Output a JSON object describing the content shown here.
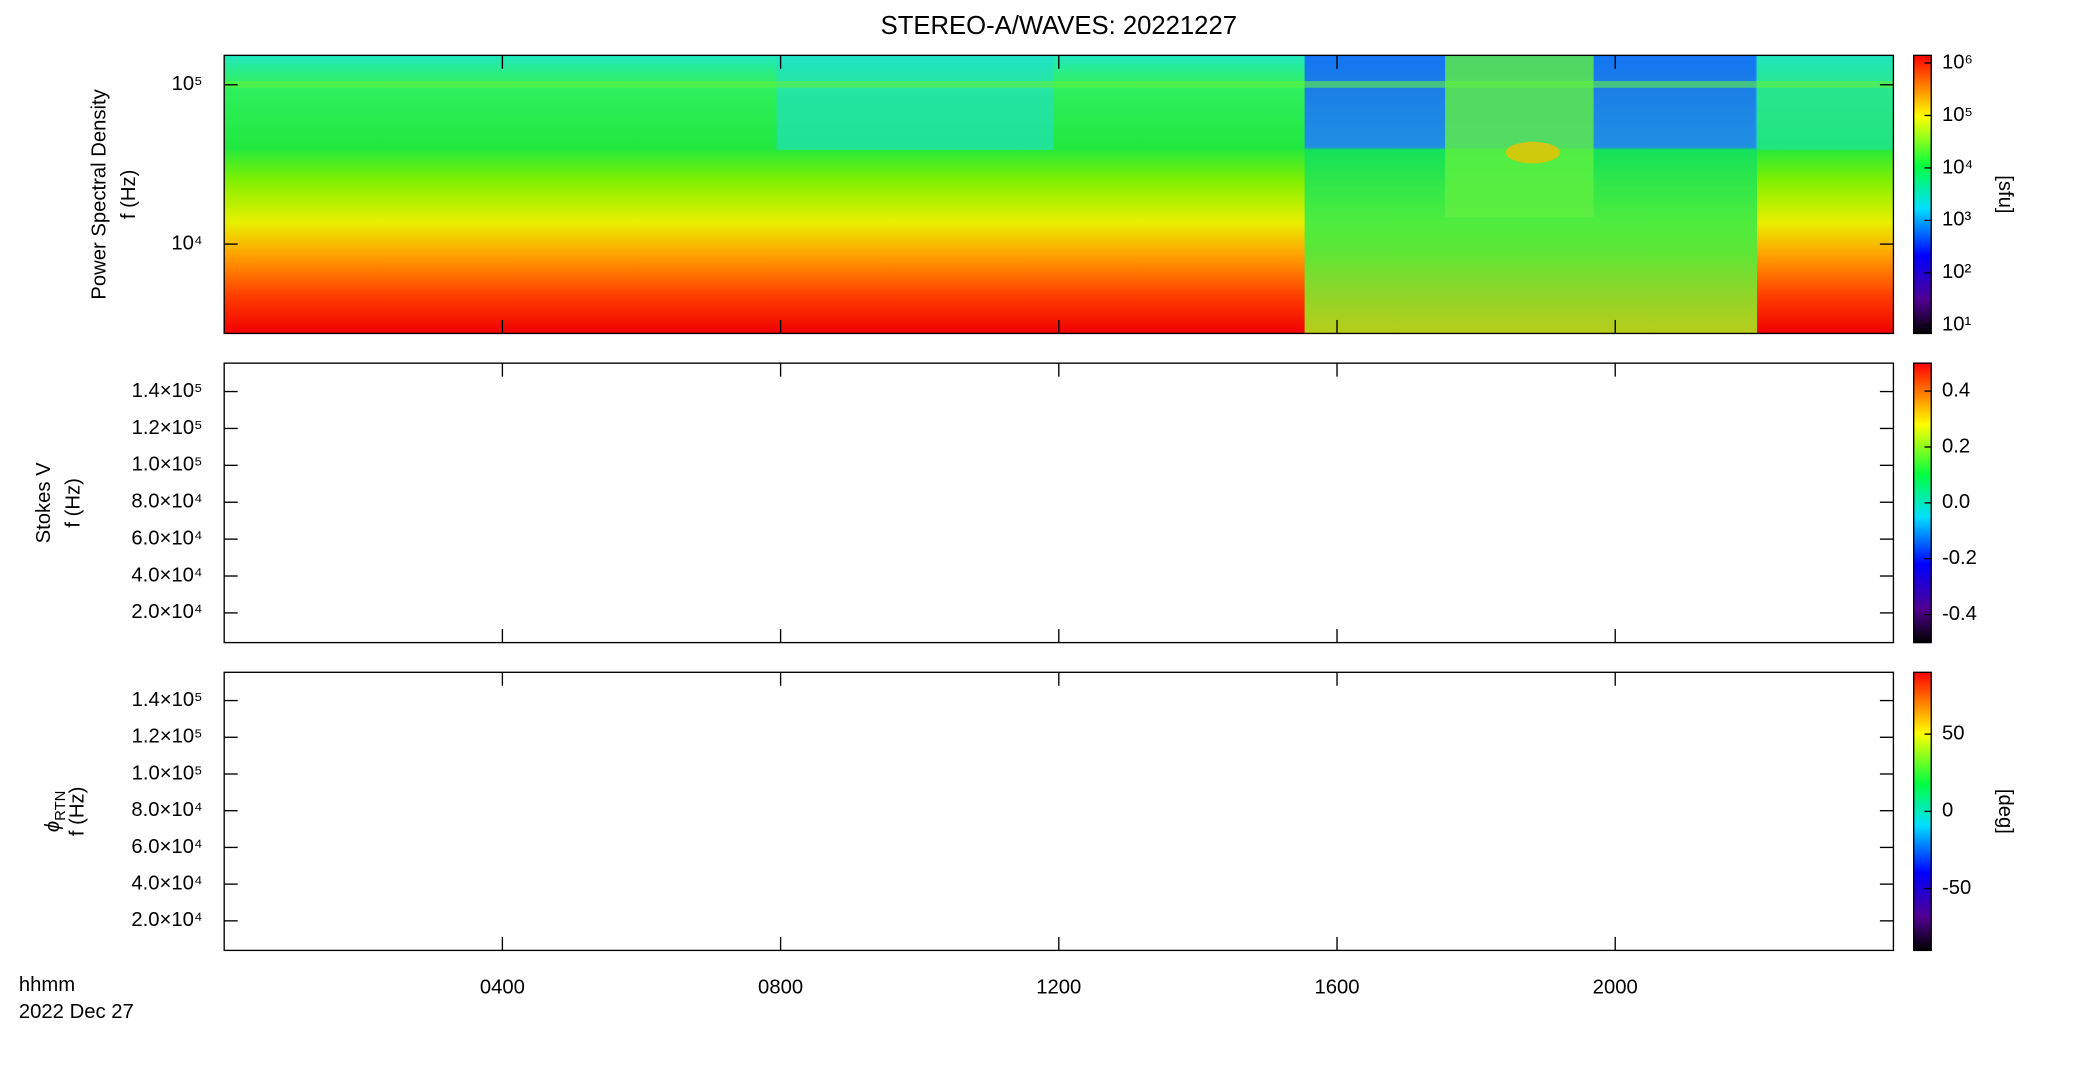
{
  "chart_data": [
    {
      "type": "spectrogram",
      "title": "STEREO-A/WAVES: 20221227",
      "ylabel": "Power Spectral Density",
      "ylabel2": "f (Hz)",
      "ylog": true,
      "ylim": [
        2750,
        153000
      ],
      "yticks": [
        {
          "value": 10000,
          "label": "10⁴"
        },
        {
          "value": 100000,
          "label": "10⁵"
        }
      ],
      "xlim": [
        0,
        24
      ],
      "xticks": [
        4,
        8,
        12,
        16,
        20
      ],
      "clog": true,
      "clim": [
        7,
        1400000
      ],
      "cticks": [
        {
          "value": 10,
          "label": "10¹"
        },
        {
          "value": 100,
          "label": "10²"
        },
        {
          "value": 1000,
          "label": "10³"
        },
        {
          "value": 10000,
          "label": "10⁴"
        },
        {
          "value": 100000,
          "label": "10⁵"
        },
        {
          "value": 1000000,
          "label": "10⁶"
        }
      ],
      "clabel": "[sfu]"
    },
    {
      "type": "spectrogram",
      "ylabel": "Stokes V",
      "ylabel2": "f (Hz)",
      "ylim": [
        3900,
        155400
      ],
      "yticks": [
        {
          "value": 20000,
          "label": "2.0×10⁴"
        },
        {
          "value": 40000,
          "label": "4.0×10⁴"
        },
        {
          "value": 60000,
          "label": "6.0×10⁴"
        },
        {
          "value": 80000,
          "label": "8.0×10⁴"
        },
        {
          "value": 100000,
          "label": "1.0×10⁵"
        },
        {
          "value": 120000,
          "label": "1.2×10⁵"
        },
        {
          "value": 140000,
          "label": "1.4×10⁵"
        }
      ],
      "xlim": [
        0,
        24
      ],
      "xticks": [
        4,
        8,
        12,
        16,
        20
      ],
      "clim": [
        -0.5,
        0.5
      ],
      "cticks": [
        {
          "value": -0.4,
          "label": "-0.4"
        },
        {
          "value": -0.2,
          "label": "-0.2"
        },
        {
          "value": 0,
          "label": "0.0"
        },
        {
          "value": 0.2,
          "label": "0.2"
        },
        {
          "value": 0.4,
          "label": "0.4"
        }
      ]
    },
    {
      "type": "spectrogram",
      "ylabel": "ϕ",
      "ylabel_sub": "RTN",
      "ylabel2": "f (Hz)",
      "ylim": [
        3900,
        155400
      ],
      "yticks": [
        {
          "value": 20000,
          "label": "2.0×10⁴"
        },
        {
          "value": 40000,
          "label": "4.0×10⁴"
        },
        {
          "value": 60000,
          "label": "6.0×10⁴"
        },
        {
          "value": 80000,
          "label": "8.0×10⁴"
        },
        {
          "value": 100000,
          "label": "1.0×10⁵"
        },
        {
          "value": 120000,
          "label": "1.2×10⁵"
        },
        {
          "value": 140000,
          "label": "1.4×10⁵"
        }
      ],
      "xlim": [
        0,
        24
      ],
      "xticks": [
        {
          "value": 4,
          "label": "0400"
        },
        {
          "value": 8,
          "label": "0800"
        },
        {
          "value": 12,
          "label": "1200"
        },
        {
          "value": 16,
          "label": "1600"
        },
        {
          "value": 20,
          "label": "2000"
        }
      ],
      "xlabel": "hhmm",
      "date": "2022 Dec 27",
      "clim": [
        -90,
        90
      ],
      "cticks": [
        -50,
        0,
        50
      ],
      "clabel": "[deg]"
    }
  ]
}
